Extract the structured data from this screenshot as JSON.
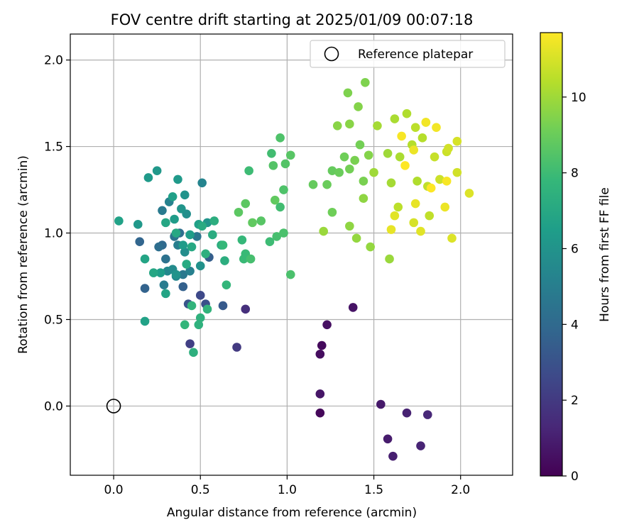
{
  "chart_data": {
    "type": "scatter",
    "title": "FOV centre drift starting at 2025/01/09 00:07:18",
    "xlabel": "Angular distance from reference (arcmin)",
    "ylabel": "Rotation from reference (arcmin)",
    "xlim": [
      -0.25,
      2.3
    ],
    "ylim": [
      -0.4,
      2.15
    ],
    "xticks": [
      "0.0",
      "0.5",
      "1.0",
      "1.5",
      "2.0"
    ],
    "xtick_values": [
      0.0,
      0.5,
      1.0,
      1.5,
      2.0
    ],
    "yticks": [
      "0.0",
      "0.5",
      "1.0",
      "1.5",
      "2.0"
    ],
    "ytick_values": [
      0.0,
      0.5,
      1.0,
      1.5,
      2.0
    ],
    "grid": true,
    "colormap": "viridis",
    "colormap_stops": [
      "#440154",
      "#482878",
      "#3e4989",
      "#31688e",
      "#26828e",
      "#1f9e89",
      "#35b779",
      "#6ece58",
      "#b5de2b",
      "#fde725"
    ],
    "colorbar": {
      "label": "Hours from first FF file",
      "range": [
        0,
        11.7
      ],
      "ticks": [
        "0",
        "2",
        "4",
        "6",
        "8",
        "10"
      ],
      "tick_values": [
        0,
        2,
        4,
        6,
        8,
        10
      ]
    },
    "legend": {
      "position": "top-right",
      "entries": [
        {
          "label": "Reference platepar",
          "marker": "hollow-circle"
        }
      ]
    },
    "reference_point": {
      "x": 0.0,
      "y": 0.0
    },
    "points_columns": [
      "x",
      "y",
      "hours"
    ],
    "points": [
      [
        1.19,
        -0.04,
        0.2
      ],
      [
        1.2,
        0.35,
        0.3
      ],
      [
        1.19,
        0.3,
        0.4
      ],
      [
        1.23,
        0.47,
        0.5
      ],
      [
        1.38,
        0.57,
        0.6
      ],
      [
        1.19,
        0.07,
        0.7
      ],
      [
        1.54,
        0.01,
        0.8
      ],
      [
        1.58,
        -0.19,
        0.9
      ],
      [
        1.61,
        -0.29,
        1.0
      ],
      [
        1.69,
        -0.04,
        1.1
      ],
      [
        1.77,
        -0.23,
        1.2
      ],
      [
        1.81,
        -0.05,
        1.3
      ],
      [
        0.76,
        0.56,
        1.6
      ],
      [
        0.71,
        0.34,
        2.0
      ],
      [
        0.44,
        0.36,
        2.2
      ],
      [
        0.5,
        0.64,
        2.6
      ],
      [
        0.53,
        0.59,
        2.9
      ],
      [
        0.43,
        0.59,
        3.1
      ],
      [
        0.63,
        0.58,
        3.3
      ],
      [
        0.55,
        0.86,
        3.5
      ],
      [
        0.4,
        0.69,
        3.6
      ],
      [
        0.18,
        0.68,
        3.7
      ],
      [
        0.15,
        0.95,
        3.8
      ],
      [
        0.28,
        0.93,
        4.0
      ],
      [
        0.26,
        0.92,
        4.2
      ],
      [
        0.38,
        1.0,
        4.3
      ],
      [
        0.3,
        0.85,
        4.4
      ],
      [
        0.35,
        0.98,
        4.5
      ],
      [
        0.48,
        0.98,
        4.6
      ],
      [
        0.4,
        0.76,
        4.7
      ],
      [
        0.28,
        1.13,
        4.8
      ],
      [
        0.29,
        0.7,
        4.9
      ],
      [
        0.37,
        0.93,
        5.0
      ],
      [
        0.44,
        0.78,
        5.1
      ],
      [
        0.32,
        1.18,
        5.2
      ],
      [
        0.51,
        1.29,
        5.3
      ],
      [
        0.36,
        0.75,
        5.4
      ],
      [
        0.31,
        0.78,
        5.5
      ],
      [
        0.34,
        0.79,
        5.6
      ],
      [
        0.41,
        0.89,
        5.7
      ],
      [
        0.42,
        1.11,
        5.8
      ],
      [
        0.5,
        0.81,
        5.9
      ],
      [
        0.36,
        0.76,
        6.0
      ],
      [
        0.54,
        1.06,
        6.1
      ],
      [
        0.14,
        1.05,
        6.2
      ],
      [
        0.2,
        1.32,
        6.3
      ],
      [
        0.37,
        1.31,
        6.3
      ],
      [
        0.25,
        1.36,
        6.2
      ],
      [
        0.39,
        1.14,
        6.1
      ],
      [
        0.41,
        1.22,
        6.0
      ],
      [
        0.35,
        1.08,
        6.4
      ],
      [
        0.4,
        0.93,
        6.4
      ],
      [
        0.27,
        0.77,
        6.5
      ],
      [
        0.44,
        0.99,
        6.5
      ],
      [
        0.34,
        1.21,
        6.6
      ],
      [
        0.49,
        1.05,
        6.6
      ],
      [
        0.03,
        1.07,
        6.7
      ],
      [
        0.18,
        0.49,
        6.7
      ],
      [
        0.3,
        0.65,
        6.8
      ],
      [
        0.18,
        0.85,
        6.8
      ],
      [
        0.3,
        1.06,
        6.9
      ],
      [
        0.23,
        0.77,
        6.9
      ],
      [
        0.36,
        1.0,
        7.0
      ],
      [
        0.45,
        0.92,
        7.0
      ],
      [
        0.51,
        1.04,
        7.1
      ],
      [
        0.42,
        0.82,
        7.1
      ],
      [
        0.57,
        0.99,
        7.2
      ],
      [
        0.62,
        0.93,
        7.2
      ],
      [
        0.64,
        0.84,
        7.3
      ],
      [
        0.58,
        1.07,
        7.3
      ],
      [
        0.53,
        0.88,
        7.4
      ],
      [
        0.46,
        0.31,
        7.4
      ],
      [
        0.49,
        0.47,
        7.5
      ],
      [
        0.5,
        0.51,
        7.5
      ],
      [
        0.45,
        0.58,
        7.6
      ],
      [
        0.54,
        0.56,
        7.6
      ],
      [
        0.65,
        0.7,
        7.7
      ],
      [
        0.41,
        0.47,
        7.7
      ],
      [
        0.63,
        0.93,
        7.8
      ],
      [
        0.74,
        0.96,
        7.8
      ],
      [
        0.76,
        0.88,
        7.9
      ],
      [
        0.75,
        0.85,
        7.9
      ],
      [
        0.78,
        1.36,
        8.0
      ],
      [
        0.9,
        0.95,
        8.0
      ],
      [
        0.96,
        1.15,
        8.1
      ],
      [
        0.91,
        1.46,
        8.1
      ],
      [
        0.79,
        0.85,
        8.2
      ],
      [
        0.94,
        0.98,
        8.2
      ],
      [
        0.98,
        1.0,
        8.3
      ],
      [
        1.02,
        0.76,
        8.3
      ],
      [
        0.98,
        1.25,
        8.4
      ],
      [
        0.96,
        1.55,
        8.4
      ],
      [
        0.92,
        1.39,
        8.5
      ],
      [
        0.99,
        1.4,
        8.5
      ],
      [
        1.02,
        1.45,
        8.6
      ],
      [
        0.85,
        1.07,
        8.6
      ],
      [
        0.72,
        1.12,
        8.7
      ],
      [
        0.76,
        1.17,
        8.7
      ],
      [
        0.8,
        1.06,
        8.8
      ],
      [
        0.93,
        1.19,
        8.8
      ],
      [
        1.15,
        1.28,
        8.9
      ],
      [
        1.26,
        1.36,
        8.9
      ],
      [
        1.23,
        1.28,
        9.0
      ],
      [
        1.3,
        1.35,
        9.0
      ],
      [
        1.26,
        1.12,
        9.1
      ],
      [
        1.33,
        1.44,
        9.1
      ],
      [
        1.36,
        1.37,
        9.2
      ],
      [
        1.42,
        1.51,
        9.2
      ],
      [
        1.44,
        1.3,
        9.3
      ],
      [
        1.39,
        1.42,
        9.3
      ],
      [
        1.35,
        1.81,
        9.4
      ],
      [
        1.45,
        1.87,
        9.4
      ],
      [
        1.41,
        1.73,
        9.5
      ],
      [
        1.47,
        1.45,
        9.5
      ],
      [
        1.36,
        1.63,
        9.6
      ],
      [
        1.29,
        1.62,
        9.6
      ],
      [
        1.44,
        1.2,
        9.7
      ],
      [
        1.36,
        1.04,
        9.7
      ],
      [
        1.48,
        0.92,
        9.8
      ],
      [
        1.4,
        0.97,
        9.8
      ],
      [
        1.21,
        1.01,
        9.9
      ],
      [
        1.59,
        0.85,
        9.9
      ],
      [
        1.5,
        1.35,
        10.0
      ],
      [
        1.58,
        1.46,
        10.0
      ],
      [
        1.52,
        1.62,
        10.1
      ],
      [
        1.6,
        1.29,
        10.1
      ],
      [
        1.65,
        1.44,
        10.2
      ],
      [
        1.62,
        1.66,
        10.2
      ],
      [
        1.69,
        1.69,
        10.3
      ],
      [
        1.75,
        1.3,
        10.3
      ],
      [
        1.72,
        1.51,
        10.4
      ],
      [
        1.78,
        1.55,
        10.4
      ],
      [
        1.64,
        1.15,
        10.5
      ],
      [
        1.74,
        1.61,
        10.5
      ],
      [
        1.81,
        1.27,
        10.6
      ],
      [
        1.82,
        1.1,
        10.6
      ],
      [
        1.8,
        1.64,
        10.7
      ],
      [
        1.85,
        1.44,
        10.7
      ],
      [
        1.88,
        1.31,
        10.8
      ],
      [
        1.92,
        1.47,
        10.8
      ],
      [
        1.98,
        1.35,
        10.9
      ],
      [
        1.93,
        1.49,
        10.9
      ],
      [
        1.98,
        1.53,
        11.0
      ],
      [
        1.73,
        1.06,
        11.0
      ],
      [
        1.95,
        0.97,
        11.1
      ],
      [
        2.05,
        1.23,
        11.1
      ],
      [
        1.62,
        1.1,
        11.2
      ],
      [
        1.77,
        1.01,
        11.2
      ],
      [
        1.6,
        1.02,
        11.3
      ],
      [
        1.74,
        1.17,
        11.3
      ],
      [
        1.91,
        1.15,
        11.4
      ],
      [
        1.73,
        1.48,
        11.4
      ],
      [
        1.8,
        1.64,
        11.5
      ],
      [
        1.86,
        1.61,
        11.5
      ],
      [
        1.92,
        1.3,
        11.6
      ],
      [
        1.66,
        1.56,
        11.6
      ],
      [
        1.68,
        1.39,
        11.7
      ],
      [
        1.83,
        1.26,
        11.7
      ]
    ]
  }
}
